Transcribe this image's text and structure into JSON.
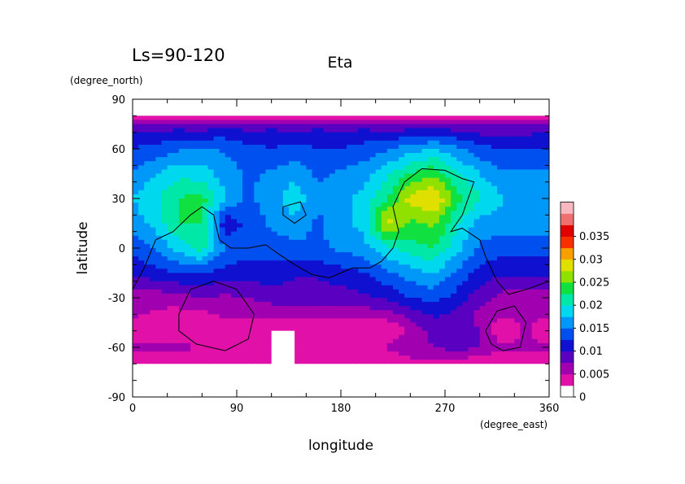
{
  "chart_data": {
    "type": "heatmap",
    "title": "Eta",
    "subtitle": "Ls=90-120",
    "xlabel": "longitude",
    "ylabel": "latitude",
    "x_units": "(degree_east)",
    "y_units": "(degree_north)",
    "xlim": [
      0,
      360
    ],
    "ylim": [
      -90,
      90
    ],
    "x_ticks": [
      "0",
      "90",
      "180",
      "270",
      "360"
    ],
    "y_ticks": [
      "90",
      "60",
      "30",
      "0",
      "-30",
      "-60",
      "-90"
    ],
    "grid": false,
    "colorbar": {
      "labels": [
        "0",
        "0.005",
        "0.01",
        "0.015",
        "0.02",
        "0.025",
        "0.03",
        "0.035"
      ],
      "levels": [
        0,
        0.0025,
        0.005,
        0.0075,
        0.01,
        0.0125,
        0.015,
        0.0175,
        0.02,
        0.0225,
        0.025,
        0.0275,
        0.03,
        0.0325,
        0.035,
        0.0375
      ],
      "colors": [
        "#ffffff",
        "#e010a8",
        "#a000b0",
        "#5a00c0",
        "#1010d0",
        "#0050f0",
        "#0098f8",
        "#00d8f0",
        "#00e8a8",
        "#10e040",
        "#90e000",
        "#e0e000",
        "#f8a000",
        "#f83000",
        "#e00000",
        "#f07070",
        "#f8b8c0"
      ]
    },
    "longitudes": [
      0,
      20,
      40,
      60,
      80,
      100,
      120,
      140,
      160,
      180,
      200,
      220,
      240,
      260,
      280,
      300,
      320,
      340,
      360
    ],
    "latitudes": [
      80,
      75,
      70,
      60,
      45,
      30,
      15,
      0,
      -15,
      -30,
      -40,
      -50,
      -60,
      -70
    ],
    "values": [
      [
        0.0015,
        0.0015,
        0.0015,
        0.0015,
        0.0015,
        0.0015,
        0.0015,
        0.0015,
        0.0015,
        0.0015,
        0.0015,
        0.0015,
        0.0015,
        0.0015,
        0.0015,
        0.0015,
        0.0015,
        0.0015,
        0.0015
      ],
      [
        0.0055,
        0.005,
        0.005,
        0.005,
        0.005,
        0.005,
        0.005,
        0.005,
        0.005,
        0.005,
        0.005,
        0.005,
        0.005,
        0.005,
        0.005,
        0.005,
        0.005,
        0.005,
        0.0055
      ],
      [
        0.008,
        0.008,
        0.0085,
        0.008,
        0.009,
        0.008,
        0.0085,
        0.008,
        0.0085,
        0.008,
        0.0085,
        0.008,
        0.0085,
        0.009,
        0.008,
        0.007,
        0.0065,
        0.007,
        0.008
      ],
      [
        0.01,
        0.011,
        0.012,
        0.013,
        0.012,
        0.011,
        0.01,
        0.011,
        0.01,
        0.01,
        0.011,
        0.012,
        0.014,
        0.015,
        0.013,
        0.011,
        0.01,
        0.01,
        0.01
      ],
      [
        0.013,
        0.015,
        0.017,
        0.016,
        0.014,
        0.012,
        0.013,
        0.014,
        0.012,
        0.013,
        0.014,
        0.017,
        0.02,
        0.022,
        0.018,
        0.015,
        0.013,
        0.013,
        0.013
      ],
      [
        0.015,
        0.017,
        0.02,
        0.021,
        0.015,
        0.012,
        0.014,
        0.017,
        0.013,
        0.014,
        0.016,
        0.02,
        0.026,
        0.028,
        0.021,
        0.018,
        0.015,
        0.015,
        0.015
      ],
      [
        0.014,
        0.016,
        0.02,
        0.02,
        0.008,
        0.011,
        0.013,
        0.014,
        0.012,
        0.014,
        0.016,
        0.026,
        0.022,
        0.023,
        0.018,
        0.014,
        0.014,
        0.014,
        0.014
      ],
      [
        0.011,
        0.013,
        0.016,
        0.019,
        0.012,
        0.011,
        0.011,
        0.012,
        0.012,
        0.013,
        0.014,
        0.017,
        0.019,
        0.02,
        0.016,
        0.012,
        0.011,
        0.011,
        0.011
      ],
      [
        0.008,
        0.009,
        0.01,
        0.01,
        0.009,
        0.009,
        0.009,
        0.008,
        0.008,
        0.009,
        0.01,
        0.012,
        0.014,
        0.015,
        0.012,
        0.009,
        0.008,
        0.008,
        0.008
      ],
      [
        0.004,
        0.0035,
        0.004,
        0.005,
        0.0045,
        0.005,
        0.006,
        0.006,
        0.006,
        0.006,
        0.007,
        0.008,
        0.01,
        0.011,
        0.009,
        0.006,
        0.004,
        0.004,
        0.004
      ],
      [
        0.003,
        0.002,
        0.0015,
        0.002,
        0.003,
        0.0035,
        0.0035,
        0.0035,
        0.0035,
        0.0035,
        0.0035,
        0.004,
        0.006,
        0.008,
        0.007,
        0.004,
        0.003,
        0.003,
        0.003
      ],
      [
        0.0,
        0.0,
        0.0,
        0.0,
        0.0,
        0.0,
        0.0,
        0.0,
        0.0,
        0.0,
        0.0,
        0.0,
        0.003,
        0.006,
        0.006,
        0.005,
        0.0,
        0.003,
        0.0
      ],
      [
        0.003,
        0.003,
        0.0035,
        0.002,
        0.0,
        0.002,
        0.0,
        0.0,
        0.0015,
        0.0,
        0.0015,
        0.003,
        0.004,
        0.005,
        0.006,
        0.005,
        0.003,
        0.003,
        0.003
      ],
      [
        0.0,
        0.0,
        0.0,
        0.0,
        0.0,
        0.0,
        0.0,
        0.0,
        0.0,
        0.0,
        0.0,
        0.0,
        0.0015,
        0.002,
        0.002,
        0.0,
        0.0,
        0.0,
        0.0
      ]
    ],
    "overlay_contour_color": "#000000"
  }
}
